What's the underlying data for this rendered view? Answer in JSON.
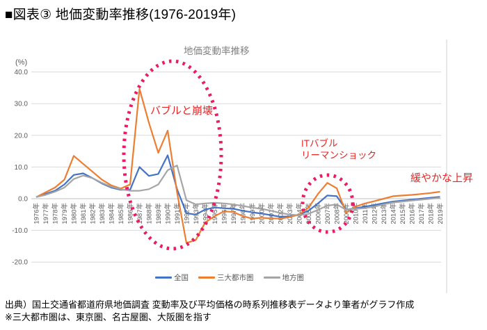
{
  "page_title": "■図表③ 地価変動率推移(1976-2019年)",
  "chart": {
    "title": "地価変動率推移",
    "unit_label": "(%)",
    "annotations": {
      "bubble_crash": "バブルと崩壊",
      "it_bubble": "ITバブル",
      "lehman": "リーマンショック",
      "gentle_rise": "緩やかな上昇"
    }
  },
  "chart_data": {
    "type": "line",
    "title": "地価変動率推移",
    "ylabel": "(%)",
    "ylim": [
      -20,
      40
    ],
    "yticks": [
      40,
      30,
      20,
      10,
      0,
      -10,
      -20
    ],
    "grid": true,
    "legend_position": "bottom",
    "categories": [
      "1976年",
      "1977年",
      "1978年",
      "1979年",
      "1980年",
      "1981年",
      "1982年",
      "1983年",
      "1984年",
      "1985年",
      "1986年",
      "1987年",
      "1988年",
      "1989年",
      "1990年",
      "1991年",
      "1992年",
      "1993年",
      "1994年",
      "1995年",
      "1996年",
      "1997年",
      "1998年",
      "1999年",
      "2000年",
      "2001年",
      "2002年",
      "2003年",
      "2004年",
      "2005年",
      "2006年",
      "2007年",
      "2008年",
      "2009年",
      "2010年",
      "2011年",
      "2012年",
      "2013年",
      "2014年",
      "2015年",
      "2016年",
      "2017年",
      "2018年",
      "2019年"
    ],
    "series": [
      {
        "name": "全国",
        "color": "#4472c4",
        "values": [
          0.5,
          1.5,
          2.5,
          4.5,
          7.5,
          8,
          6.5,
          4.8,
          3.5,
          2.8,
          2.8,
          10,
          7.2,
          7.8,
          13.7,
          3,
          -4.6,
          -5,
          -3.4,
          -2.8,
          -3,
          -3.2,
          -3.8,
          -4.3,
          -4.7,
          -5.2,
          -5.7,
          -5.6,
          -5,
          -3.8,
          -1.5,
          1,
          0.8,
          -3.5,
          -3,
          -2.5,
          -2,
          -1.4,
          -0.9,
          -0.6,
          -0.3,
          0,
          0.3,
          0.6
        ]
      },
      {
        "name": "三大都市圏",
        "color": "#ed7d31",
        "values": [
          0.5,
          2,
          3.5,
          6,
          13.5,
          11,
          8.5,
          6,
          4.2,
          3.2,
          4.5,
          34.7,
          24,
          14.5,
          21.5,
          2,
          -14,
          -13,
          -7.5,
          -5.5,
          -4,
          -4.2,
          -5.5,
          -6.3,
          -6,
          -6.2,
          -6.3,
          -5.8,
          -5,
          -2.8,
          1.5,
          5,
          3.3,
          -4.5,
          -2.5,
          -1.5,
          -0.8,
          0,
          0.8,
          1,
          1.2,
          1.5,
          1.8,
          2.2
        ]
      },
      {
        "name": "地方圏",
        "color": "#a5a5a5",
        "values": [
          0.5,
          1.2,
          2.2,
          3.5,
          6.2,
          7.3,
          6.5,
          5,
          3.8,
          3,
          2.5,
          2.5,
          3,
          4.5,
          9,
          10.5,
          -0.5,
          -1.8,
          -1.5,
          -1.3,
          -1.5,
          -1.8,
          -2.3,
          -2.8,
          -3.2,
          -3.8,
          -4.5,
          -5,
          -5.2,
          -4.8,
          -3.5,
          -2.2,
          -1.8,
          -3.5,
          -3.2,
          -3,
          -2.5,
          -1.8,
          -1.2,
          -0.9,
          -0.6,
          -0.3,
          0,
          0.3
        ]
      }
    ]
  },
  "footer": {
    "line1": "出典）国土交通省都道府県地価調査 変動率及び平均価格の時系列推移表データより筆者がグラフ作成",
    "line2": "※三大都市圏は、東京圏、名古屋圏、大阪圏を指す"
  }
}
